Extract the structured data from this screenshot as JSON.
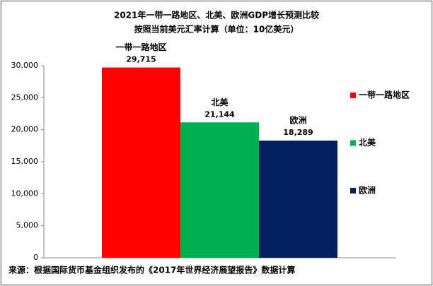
{
  "chart_data": {
    "type": "bar",
    "title": "2021年一带一路地区、北美、欧洲GDP增长预测比较",
    "subtitle": "按照当前美元汇率计算（单位：10亿美元）",
    "categories": [
      null
    ],
    "series": [
      {
        "name": "一带一路地区",
        "color": "#ff0000",
        "values": [
          29715
        ],
        "value_labels": [
          "29,715"
        ]
      },
      {
        "name": "北美",
        "color": "#00b050",
        "values": [
          21144
        ],
        "value_labels": [
          "21,144"
        ]
      },
      {
        "name": "欧洲",
        "color": "#002060",
        "values": [
          18289
        ],
        "value_labels": [
          "18,289"
        ]
      }
    ],
    "ylim": [
      0,
      30000
    ],
    "yticks": [
      0,
      {
        "value": 5000,
        "label": "5,000"
      },
      {
        "value": 10000,
        "label": "10,000"
      },
      {
        "value": 15000,
        "label": "15,000"
      },
      {
        "value": 20000,
        "label": "20,000"
      },
      {
        "value": 25000,
        "label": "25,000"
      },
      {
        "value": 30000,
        "label": "30,000"
      }
    ],
    "grid": false,
    "legend": "right",
    "source": "来源：根据国际货币基金组织发布的《2017年世界经济展望报告》数据计算"
  }
}
